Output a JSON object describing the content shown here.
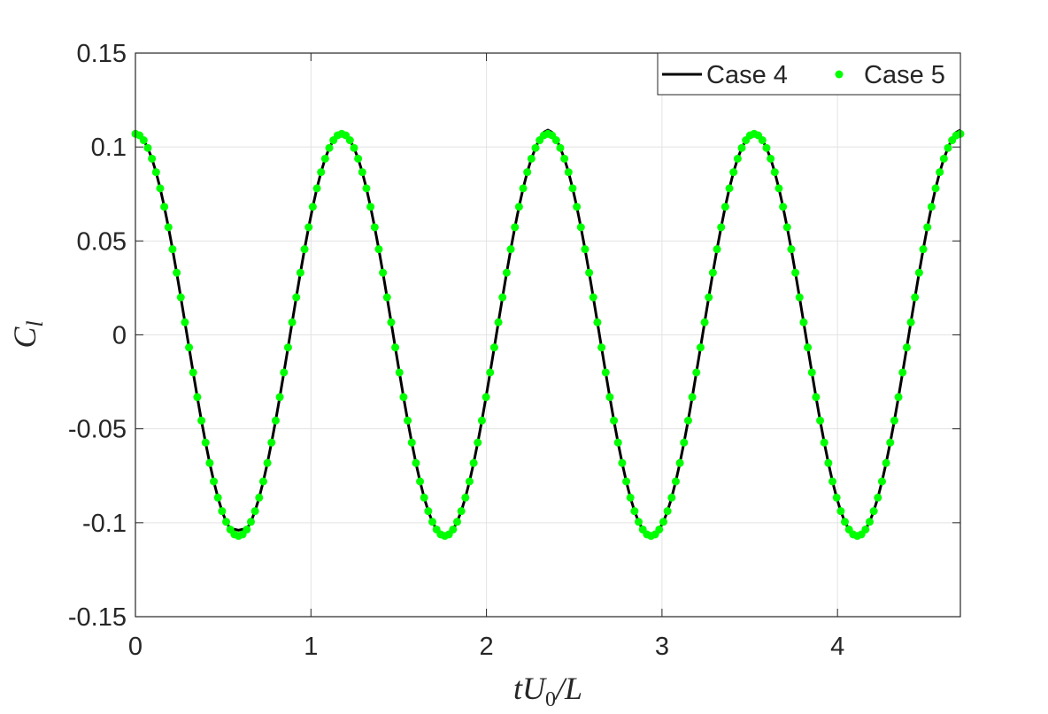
{
  "chart_data": {
    "type": "line",
    "xlabel": [
      "tU",
      "0",
      "/L"
    ],
    "ylabel": [
      "C",
      "l"
    ],
    "xlim": [
      0,
      4.7
    ],
    "xticks": [
      0,
      1,
      2,
      3,
      4
    ],
    "ylim": [
      -0.15,
      0.15
    ],
    "yticks": [
      -0.15,
      -0.1,
      -0.05,
      0,
      0.05,
      0.1,
      0.15
    ],
    "grid": true,
    "legend": "northeast",
    "x": [
      0,
      0.0235,
      0.047,
      0.0705,
      0.094,
      0.1175,
      0.141,
      0.1645,
      0.188,
      0.2115,
      0.235,
      0.2585,
      0.282,
      0.3055,
      0.329,
      0.3525,
      0.376,
      0.3995,
      0.423,
      0.4465,
      0.47,
      0.4935,
      0.517,
      0.5405,
      0.564,
      0.5875,
      0.611,
      0.6345,
      0.658,
      0.6815,
      0.705,
      0.7285,
      0.752,
      0.7755,
      0.799,
      0.8225,
      0.846,
      0.8695,
      0.893,
      0.9165,
      0.94,
      0.9635,
      0.987,
      1.0105,
      1.034,
      1.0575,
      1.081,
      1.1045,
      1.128,
      1.1515,
      1.175,
      1.1985,
      1.222,
      1.2455,
      1.269,
      1.2925,
      1.316,
      1.3395,
      1.363,
      1.3865,
      1.41,
      1.4335,
      1.457,
      1.4805,
      1.504,
      1.5275,
      1.551,
      1.5745,
      1.598,
      1.6215,
      1.645,
      1.6685,
      1.692,
      1.7155,
      1.739,
      1.7625,
      1.786,
      1.8095,
      1.833,
      1.8565,
      1.88,
      1.9035,
      1.927,
      1.9505,
      1.974,
      1.9975,
      2.021,
      2.0445,
      2.068,
      2.0915,
      2.115,
      2.1385,
      2.162,
      2.1855,
      2.209,
      2.2325,
      2.256,
      2.2795,
      2.303,
      2.3265,
      2.35,
      2.3735,
      2.397,
      2.4205,
      2.444,
      2.4675,
      2.491,
      2.5145,
      2.538,
      2.5615,
      2.585,
      2.6085,
      2.632,
      2.6555,
      2.679,
      2.7025,
      2.726,
      2.7495,
      2.773,
      2.7965,
      2.82,
      2.8435,
      2.867,
      2.8905,
      2.914,
      2.9375,
      2.961,
      2.9845,
      3.008,
      3.0315,
      3.055,
      3.0785,
      3.102,
      3.1255,
      3.149,
      3.1725,
      3.196,
      3.2195,
      3.243,
      3.2665,
      3.29,
      3.3135,
      3.337,
      3.3605,
      3.384,
      3.4075,
      3.431,
      3.4545,
      3.478,
      3.5015,
      3.525,
      3.5485,
      3.572,
      3.5955,
      3.619,
      3.6425,
      3.666,
      3.6895,
      3.713,
      3.7365,
      3.76,
      3.7835,
      3.807,
      3.8305,
      3.854,
      3.8775,
      3.901,
      3.9245,
      3.948,
      3.9715,
      3.995,
      4.0185,
      4.042,
      4.0655,
      4.089,
      4.1125,
      4.136,
      4.1595,
      4.183,
      4.2065,
      4.23,
      4.2535,
      4.277,
      4.3005,
      4.324,
      4.3475,
      4.371,
      4.3945,
      4.418,
      4.4415,
      4.465,
      4.4885,
      4.512,
      4.5355,
      4.559,
      4.5825,
      4.606,
      4.6295,
      4.653,
      4.6765,
      4.7
    ],
    "series": [
      {
        "name": "Case 4",
        "color": "#000000",
        "style": "line",
        "values": [
          0.107,
          0.1062,
          0.1036,
          0.0995,
          0.0938,
          0.0866,
          0.078,
          0.0682,
          0.0573,
          0.0456,
          0.0331,
          0.02,
          0.0067,
          -0.0067,
          -0.02,
          -0.0331,
          -0.0456,
          -0.0573,
          -0.0682,
          -0.078,
          -0.0866,
          -0.0938,
          -0.0995,
          -0.1033,
          -0.1035,
          -0.104,
          -0.1035,
          -0.1033,
          -0.0995,
          -0.0938,
          -0.0866,
          -0.078,
          -0.0682,
          -0.0573,
          -0.0456,
          -0.0331,
          -0.02,
          -0.0067,
          0.0067,
          0.02,
          0.0331,
          0.0456,
          0.0573,
          0.0682,
          0.078,
          0.0866,
          0.0938,
          0.0995,
          0.1036,
          0.1062,
          0.107,
          0.1062,
          0.1036,
          0.0995,
          0.0938,
          0.0866,
          0.078,
          0.0682,
          0.0573,
          0.0456,
          0.0331,
          0.02,
          0.0067,
          -0.0067,
          -0.02,
          -0.0331,
          -0.0456,
          -0.0573,
          -0.0682,
          -0.078,
          -0.0866,
          -0.0938,
          -0.0995,
          -0.1036,
          -0.1062,
          -0.107,
          -0.1062,
          -0.1036,
          -0.0995,
          -0.0938,
          -0.0866,
          -0.078,
          -0.0682,
          -0.0573,
          -0.0456,
          -0.0331,
          -0.02,
          -0.0067,
          0.0067,
          0.02,
          0.0331,
          0.0456,
          0.0573,
          0.0682,
          0.078,
          0.0866,
          0.0938,
          0.0995,
          0.1045,
          0.1078,
          0.109,
          0.1078,
          0.1045,
          0.0995,
          0.0938,
          0.0866,
          0.078,
          0.0682,
          0.0573,
          0.0456,
          0.0331,
          0.02,
          0.0067,
          -0.0067,
          -0.02,
          -0.0331,
          -0.0456,
          -0.0573,
          -0.0682,
          -0.078,
          -0.0866,
          -0.0938,
          -0.0995,
          -0.1036,
          -0.1062,
          -0.107,
          -0.1062,
          -0.1036,
          -0.0995,
          -0.0938,
          -0.0866,
          -0.078,
          -0.0682,
          -0.0573,
          -0.0456,
          -0.0331,
          -0.02,
          -0.0067,
          0.0067,
          0.02,
          0.0331,
          0.0456,
          0.0573,
          0.0682,
          0.078,
          0.0866,
          0.0938,
          0.0995,
          0.1036,
          0.1062,
          0.107,
          0.1062,
          0.1036,
          0.0995,
          0.0938,
          0.0866,
          0.078,
          0.0682,
          0.0573,
          0.0456,
          0.0331,
          0.02,
          0.0067,
          -0.0067,
          -0.02,
          -0.0331,
          -0.0456,
          -0.0573,
          -0.0682,
          -0.078,
          -0.0866,
          -0.0938,
          -0.0995,
          -0.1036,
          -0.1062,
          -0.107,
          -0.1062,
          -0.1036,
          -0.0995,
          -0.0938,
          -0.0866,
          -0.078,
          -0.0682,
          -0.0573,
          -0.0456,
          -0.0331,
          -0.02,
          -0.0067,
          0.0067,
          0.02,
          0.0331,
          0.0456,
          0.0573,
          0.0682,
          0.078,
          0.0866,
          0.0938,
          0.0995,
          0.1045,
          0.1078,
          0.109
        ]
      },
      {
        "name": "Case 5",
        "color": "#00ff00",
        "style": "dots",
        "values": [
          0.107,
          0.1062,
          0.1036,
          0.0995,
          0.0938,
          0.0866,
          0.078,
          0.0682,
          0.0573,
          0.0456,
          0.0331,
          0.02,
          0.0067,
          -0.0067,
          -0.02,
          -0.0331,
          -0.0456,
          -0.0573,
          -0.0682,
          -0.078,
          -0.0866,
          -0.0938,
          -0.0995,
          -0.1036,
          -0.1062,
          -0.107,
          -0.1062,
          -0.1036,
          -0.0995,
          -0.0938,
          -0.0866,
          -0.078,
          -0.0682,
          -0.0573,
          -0.0456,
          -0.0331,
          -0.02,
          -0.0067,
          0.0067,
          0.02,
          0.0331,
          0.0456,
          0.0573,
          0.0682,
          0.078,
          0.0866,
          0.0938,
          0.0995,
          0.1036,
          0.1062,
          0.107,
          0.1062,
          0.1036,
          0.0995,
          0.0938,
          0.0866,
          0.078,
          0.0682,
          0.0573,
          0.0456,
          0.0331,
          0.02,
          0.0067,
          -0.0067,
          -0.02,
          -0.0331,
          -0.0456,
          -0.0573,
          -0.0682,
          -0.078,
          -0.0866,
          -0.0938,
          -0.0995,
          -0.1036,
          -0.1062,
          -0.107,
          -0.1062,
          -0.1036,
          -0.0995,
          -0.0938,
          -0.0866,
          -0.078,
          -0.0682,
          -0.0573,
          -0.0456,
          -0.0331,
          -0.02,
          -0.0067,
          0.0067,
          0.02,
          0.0331,
          0.0456,
          0.0573,
          0.0682,
          0.078,
          0.0866,
          0.0938,
          0.0995,
          0.1036,
          0.1062,
          0.107,
          0.1062,
          0.1036,
          0.0995,
          0.0938,
          0.0866,
          0.078,
          0.0682,
          0.0573,
          0.0456,
          0.0331,
          0.02,
          0.0067,
          -0.0067,
          -0.02,
          -0.0331,
          -0.0456,
          -0.0573,
          -0.0682,
          -0.078,
          -0.0866,
          -0.0938,
          -0.0995,
          -0.1036,
          -0.1062,
          -0.107,
          -0.1062,
          -0.1036,
          -0.0995,
          -0.0938,
          -0.0866,
          -0.078,
          -0.0682,
          -0.0573,
          -0.0456,
          -0.0331,
          -0.02,
          -0.0067,
          0.0067,
          0.02,
          0.0331,
          0.0456,
          0.0573,
          0.0682,
          0.078,
          0.0866,
          0.0938,
          0.0995,
          0.1036,
          0.1062,
          0.107,
          0.1062,
          0.1036,
          0.0995,
          0.0938,
          0.0866,
          0.078,
          0.0682,
          0.0573,
          0.0456,
          0.0331,
          0.02,
          0.0067,
          -0.0067,
          -0.02,
          -0.0331,
          -0.0456,
          -0.0573,
          -0.0682,
          -0.078,
          -0.0866,
          -0.0938,
          -0.0995,
          -0.1036,
          -0.1062,
          -0.107,
          -0.1062,
          -0.1036,
          -0.0995,
          -0.0938,
          -0.0866,
          -0.078,
          -0.0682,
          -0.0573,
          -0.0456,
          -0.0331,
          -0.02,
          -0.0067,
          0.0067,
          0.02,
          0.0331,
          0.0456,
          0.0573,
          0.0682,
          0.078,
          0.0866,
          0.0938,
          0.0995,
          0.1036,
          0.1062,
          0.107
        ]
      }
    ]
  }
}
